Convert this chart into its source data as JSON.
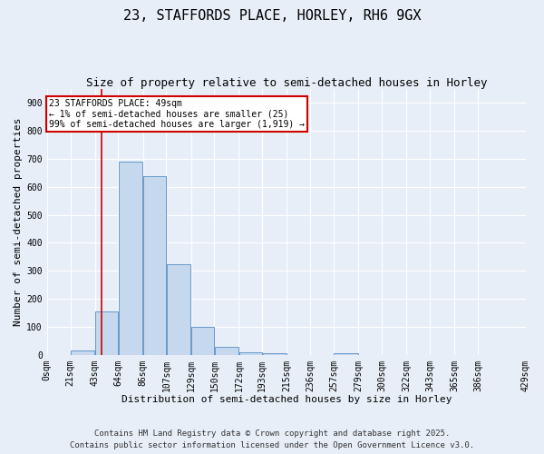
{
  "title": "23, STAFFORDS PLACE, HORLEY, RH6 9GX",
  "subtitle": "Size of property relative to semi-detached houses in Horley",
  "xlabel": "Distribution of semi-detached houses by size in Horley",
  "ylabel": "Number of semi-detached properties",
  "background_color": "#e8eef8",
  "bar_color": "#c5d8ee",
  "bar_edge_color": "#6699cc",
  "bin_edges": [
    0,
    21,
    43,
    64,
    86,
    107,
    129,
    150,
    172,
    193,
    215,
    236,
    257,
    279,
    300,
    322,
    343,
    365,
    386,
    429
  ],
  "bin_labels": [
    "0sqm",
    "21sqm",
    "43sqm",
    "64sqm",
    "86sqm",
    "107sqm",
    "129sqm",
    "150sqm",
    "172sqm",
    "193sqm",
    "215sqm",
    "236sqm",
    "257sqm",
    "279sqm",
    "300sqm",
    "322sqm",
    "343sqm",
    "365sqm",
    "386sqm",
    "429sqm"
  ],
  "counts": [
    0,
    15,
    155,
    690,
    640,
    325,
    100,
    28,
    10,
    5,
    0,
    0,
    5,
    0,
    0,
    0,
    0,
    0,
    0
  ],
  "property_value": 49,
  "vline_color": "#cc0000",
  "annotation_line1": "23 STAFFORDS PLACE: 49sqm",
  "annotation_line2": "← 1% of semi-detached houses are smaller (25)",
  "annotation_line3": "99% of semi-detached houses are larger (1,919) →",
  "annotation_box_color": "#ffffff",
  "annotation_box_edge_color": "#cc0000",
  "ylim": [
    0,
    950
  ],
  "yticks": [
    0,
    100,
    200,
    300,
    400,
    500,
    600,
    700,
    800,
    900
  ],
  "footer_line1": "Contains HM Land Registry data © Crown copyright and database right 2025.",
  "footer_line2": "Contains public sector information licensed under the Open Government Licence v3.0.",
  "grid_color": "#ffffff",
  "title_fontsize": 11,
  "subtitle_fontsize": 9,
  "axis_label_fontsize": 8,
  "tick_fontsize": 7,
  "annotation_fontsize": 7,
  "footer_fontsize": 6.5
}
